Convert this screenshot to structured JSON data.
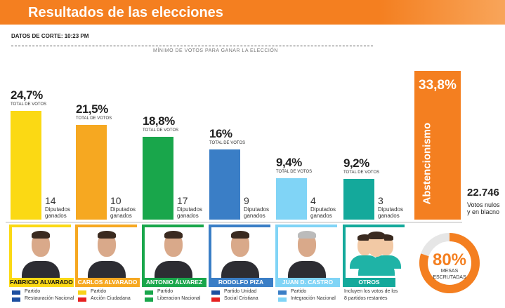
{
  "header": {
    "title": "Resultados de las elecciones",
    "cutoff": "DATOS DE CORTE: 10:23 PM"
  },
  "chart_data": {
    "type": "bar",
    "threshold_label": "MÍNIMO DE VOTOS PARA GANAR LA ELECCIÓN",
    "categories": [
      "FABRICIO ALVARADO",
      "CARLOS ALVARADO",
      "ANTONIO ÁLVAREZ",
      "RODOLFO PIZA",
      "JUAN D. CASTRO",
      "OTROS"
    ],
    "values": [
      24.7,
      21.5,
      18.8,
      16,
      9.4,
      9.2
    ],
    "value_labels": [
      "24,7%",
      "21,5%",
      "18,8%",
      "16%",
      "9,4%",
      "9,2%"
    ],
    "sublabel": "TOTAL DE VOTOS",
    "colors": [
      "#fbd914",
      "#f6a821",
      "#19a64b",
      "#3a7ec6",
      "#80d4f6",
      "#14a99b"
    ],
    "seats": [
      14,
      10,
      17,
      9,
      4,
      3
    ],
    "seats_label": [
      "Diputados",
      "ganados"
    ],
    "ylim": [
      0,
      50
    ],
    "abstention": {
      "label": "Abstencionismo",
      "value": 33.8,
      "value_label": "33,8%",
      "color": "#f47f20"
    }
  },
  "null_votes": {
    "value": 22746,
    "value_label": "22.746",
    "label": [
      "Votos nulos",
      "y en blacno"
    ]
  },
  "candidates": [
    {
      "party": [
        "Partido",
        "Restauración Nacional"
      ]
    },
    {
      "party": [
        "Partido",
        "Acción Ciudadana"
      ]
    },
    {
      "party": [
        "Partido",
        "Liberacion Nacional"
      ]
    },
    {
      "party": [
        "Partido Unidad",
        "Social Cristiana"
      ]
    },
    {
      "party": [
        "Partido",
        "Integración Nacional"
      ]
    },
    {
      "party": [
        "Incluyen los votos de los",
        "8 partidos restantes"
      ]
    }
  ],
  "mesas": {
    "value": 80,
    "value_label": "80%",
    "label": [
      "MESAS",
      "ESCRUTADAS"
    ]
  }
}
